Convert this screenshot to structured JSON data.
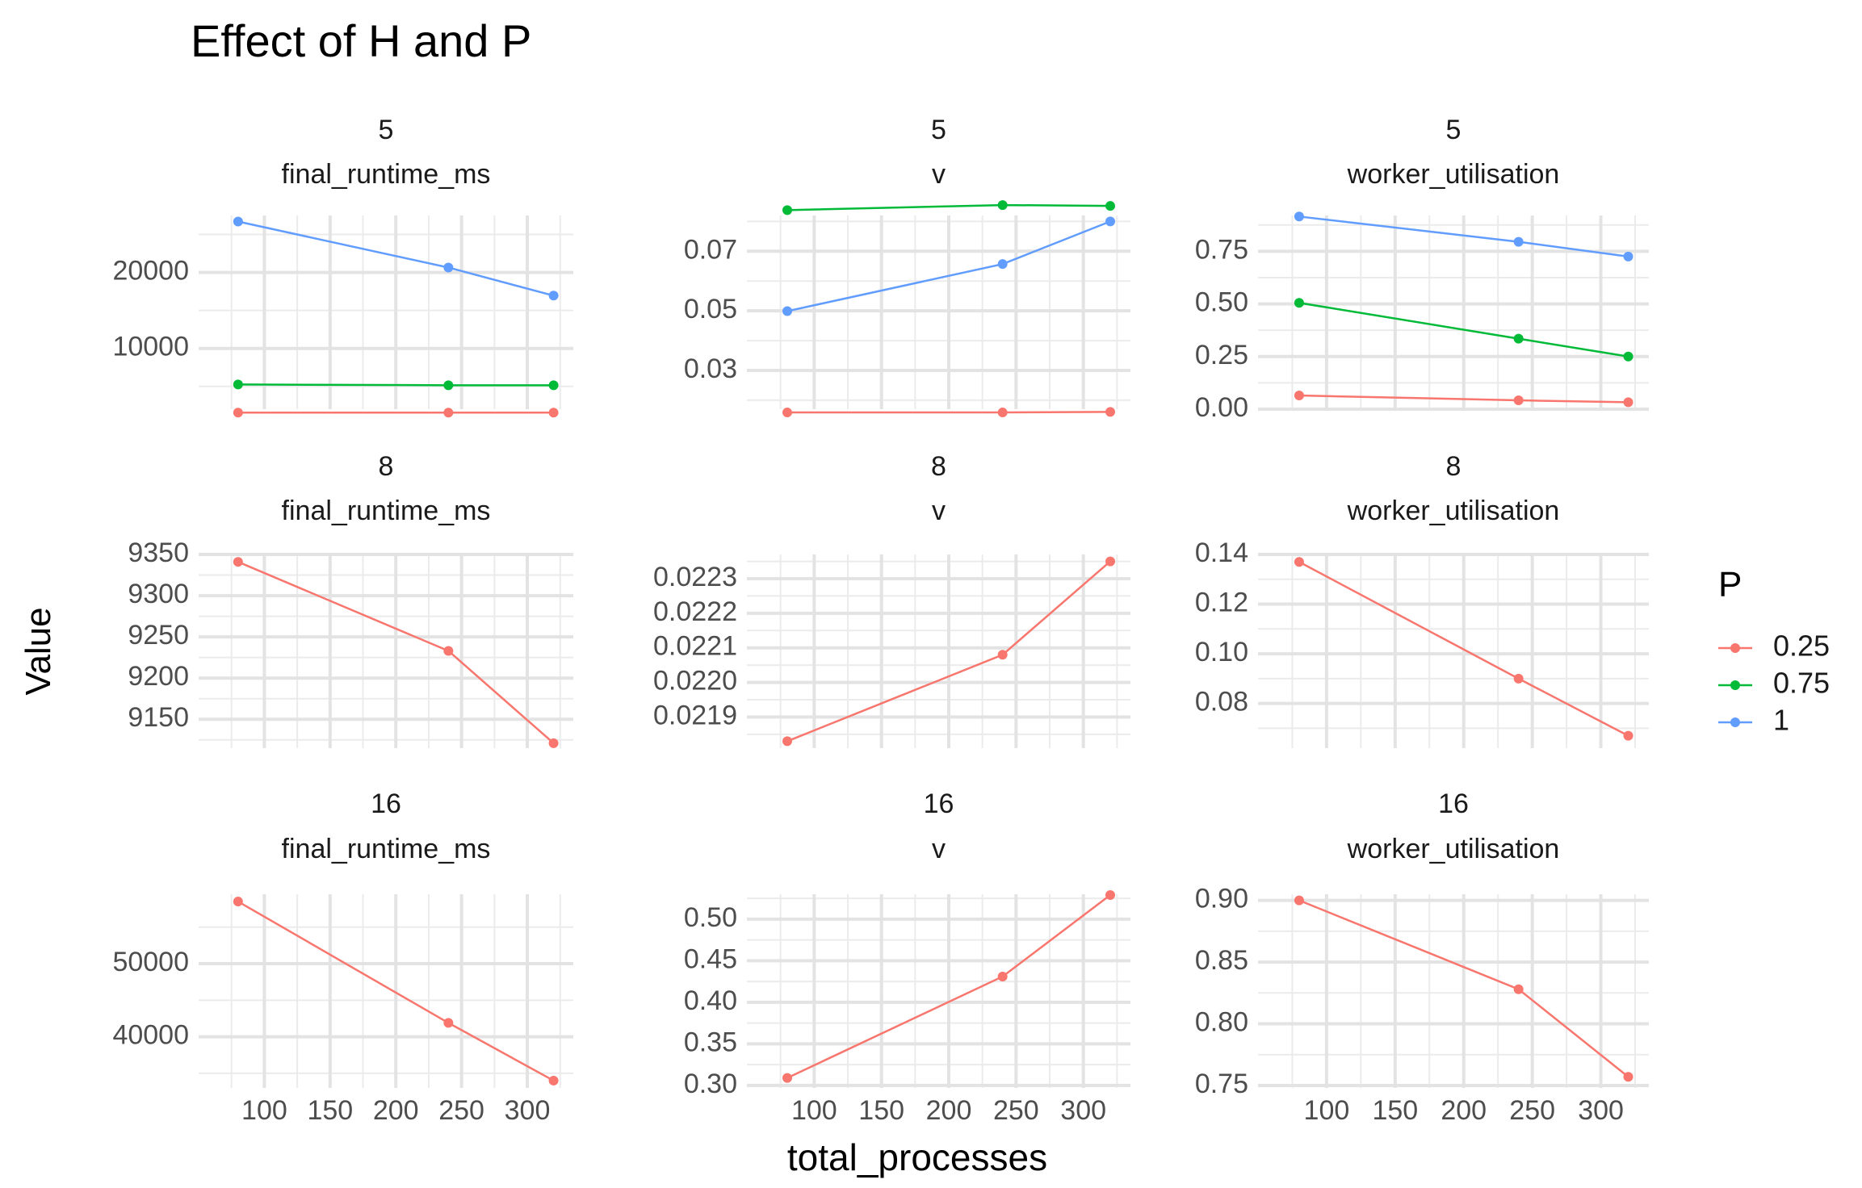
{
  "chart_data": {
    "type": "line",
    "title": "Effect of H and P",
    "xlabel": "total_processes",
    "ylabel": "Value",
    "legend": {
      "title": "P",
      "position": "right",
      "entries": [
        {
          "label": "0.25",
          "color": "#F8766D"
        },
        {
          "label": "0.75",
          "color": "#00BA38"
        },
        {
          "label": "1",
          "color": "#619CFF"
        }
      ]
    },
    "x_ticks": [
      "100",
      "150",
      "200",
      "250",
      "300"
    ],
    "x_values": [
      80,
      240,
      320
    ],
    "xlim": [
      50,
      335
    ],
    "grid": true,
    "panels": [
      {
        "strip_h": "5",
        "strip_metric": "final_runtime_ms",
        "ylim": [
          2000,
          27500
        ],
        "yticks": [
          {
            "v": 10000,
            "label": "10000"
          },
          {
            "v": 20000,
            "label": "20000"
          }
        ],
        "series": [
          {
            "p": "0.25",
            "values": [
              1550,
              1550,
              1550
            ]
          },
          {
            "p": "0.75",
            "values": [
              5250,
              5150,
              5150
            ]
          },
          {
            "p": "1",
            "values": [
              26700,
              20650,
              16950
            ]
          }
        ]
      },
      {
        "strip_h": "5",
        "strip_metric": "v",
        "ylim": [
          0.017,
          0.082
        ],
        "yticks": [
          {
            "v": 0.03,
            "label": "0.03"
          },
          {
            "v": 0.05,
            "label": "0.05"
          },
          {
            "v": 0.07,
            "label": "0.07"
          }
        ],
        "series": [
          {
            "p": "0.25",
            "values": [
              0.0159,
              0.0159,
              0.0161
            ]
          },
          {
            "p": "0.75",
            "values": [
              0.0838,
              0.0855,
              0.0852
            ]
          },
          {
            "p": "1",
            "values": [
              0.0499,
              0.0657,
              0.08
            ]
          }
        ]
      },
      {
        "strip_h": "5",
        "strip_metric": "worker_utilisation",
        "ylim": [
          0.0,
          0.92
        ],
        "yticks": [
          {
            "v": 0.0,
            "label": "0.00"
          },
          {
            "v": 0.25,
            "label": "0.25"
          },
          {
            "v": 0.5,
            "label": "0.50"
          },
          {
            "v": 0.75,
            "label": "0.75"
          }
        ],
        "series": [
          {
            "p": "0.25",
            "values": [
              0.065,
              0.042,
              0.033
            ]
          },
          {
            "p": "0.75",
            "values": [
              0.505,
              0.335,
              0.25
            ]
          },
          {
            "p": "1",
            "values": [
              0.915,
              0.795,
              0.725
            ]
          }
        ]
      },
      {
        "strip_h": "8",
        "strip_metric": "final_runtime_ms",
        "ylim": [
          9115,
          9350
        ],
        "yticks": [
          {
            "v": 9150,
            "label": "9150"
          },
          {
            "v": 9200,
            "label": "9200"
          },
          {
            "v": 9250,
            "label": "9250"
          },
          {
            "v": 9300,
            "label": "9300"
          },
          {
            "v": 9350,
            "label": "9350"
          }
        ],
        "series": [
          {
            "p": "0.25",
            "values": [
              9341,
              9233,
              9121
            ]
          }
        ]
      },
      {
        "strip_h": "8",
        "strip_metric": "v",
        "ylim": [
          0.02181,
          0.02237
        ],
        "yticks": [
          {
            "v": 0.0219,
            "label": "0.0219"
          },
          {
            "v": 0.022,
            "label": "0.0220"
          },
          {
            "v": 0.0221,
            "label": "0.0221"
          },
          {
            "v": 0.0222,
            "label": "0.0222"
          },
          {
            "v": 0.0223,
            "label": "0.0223"
          }
        ],
        "series": [
          {
            "p": "0.25",
            "values": [
              0.02183,
              0.02208,
              0.02235
            ]
          }
        ]
      },
      {
        "strip_h": "8",
        "strip_metric": "worker_utilisation",
        "ylim": [
          0.062,
          0.14
        ],
        "yticks": [
          {
            "v": 0.08,
            "label": "0.08"
          },
          {
            "v": 0.1,
            "label": "0.10"
          },
          {
            "v": 0.12,
            "label": "0.12"
          },
          {
            "v": 0.14,
            "label": "0.14"
          }
        ],
        "series": [
          {
            "p": "0.25",
            "values": [
              0.137,
              0.09,
              0.067
            ]
          }
        ]
      },
      {
        "strip_h": "16",
        "strip_metric": "final_runtime_ms",
        "ylim": [
          33000,
          59500
        ],
        "yticks": [
          {
            "v": 40000,
            "label": "40000"
          },
          {
            "v": 50000,
            "label": "50000"
          }
        ],
        "series": [
          {
            "p": "0.25",
            "values": [
              58500,
              41900,
              34000
            ]
          }
        ]
      },
      {
        "strip_h": "16",
        "strip_metric": "v",
        "ylim": [
          0.297,
          0.53
        ],
        "yticks": [
          {
            "v": 0.3,
            "label": "0.30"
          },
          {
            "v": 0.35,
            "label": "0.35"
          },
          {
            "v": 0.4,
            "label": "0.40"
          },
          {
            "v": 0.45,
            "label": "0.45"
          },
          {
            "v": 0.5,
            "label": "0.50"
          }
        ],
        "series": [
          {
            "p": "0.25",
            "values": [
              0.309,
              0.431,
              0.529
            ]
          }
        ]
      },
      {
        "strip_h": "16",
        "strip_metric": "worker_utilisation",
        "ylim": [
          0.748,
          0.905
        ],
        "yticks": [
          {
            "v": 0.75,
            "label": "0.75"
          },
          {
            "v": 0.8,
            "label": "0.80"
          },
          {
            "v": 0.85,
            "label": "0.85"
          },
          {
            "v": 0.9,
            "label": "0.90"
          }
        ],
        "series": [
          {
            "p": "0.25",
            "values": [
              0.9,
              0.828,
              0.757
            ]
          }
        ]
      }
    ]
  }
}
